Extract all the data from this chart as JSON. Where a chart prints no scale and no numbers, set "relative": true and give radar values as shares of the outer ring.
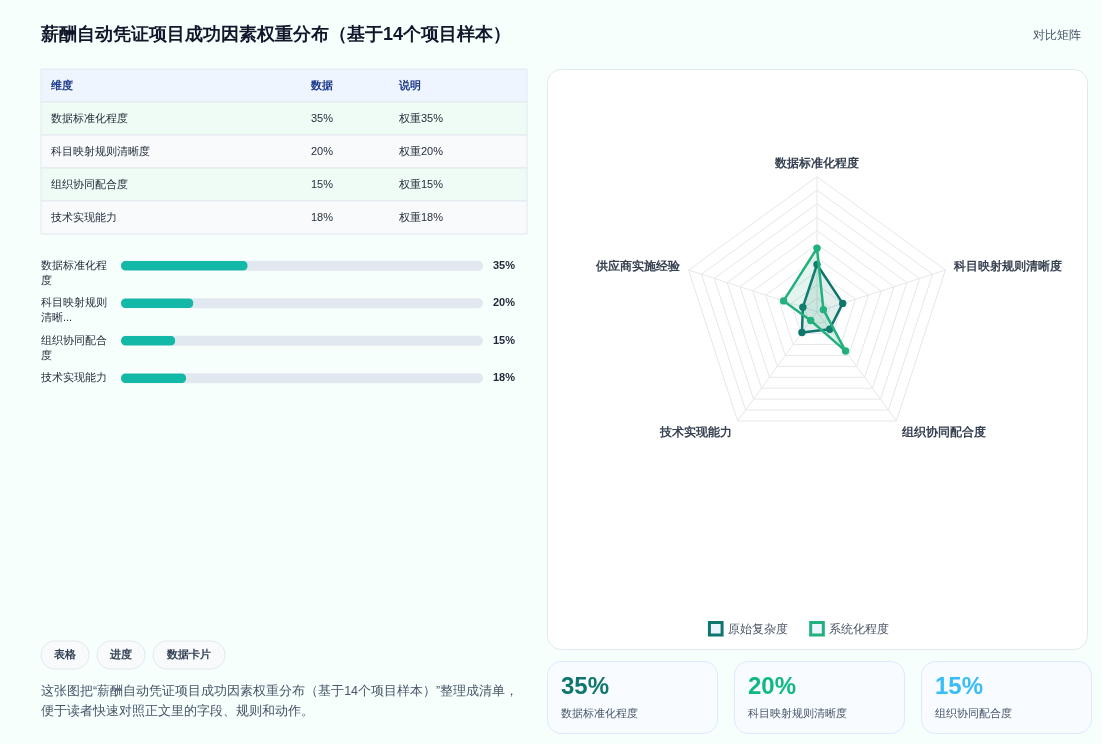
{
  "chart_data": [
    {
      "type": "other",
      "title": "薪酬自动凭证项目成功因素权重分布（基于14个项目样本）",
      "annotations": [
        "对比矩阵",
        "维度",
        "数据",
        "说明",
        "权重35%",
        "权重20%",
        "权重15%",
        "权重18%"
      ],
      "categories": [
        "数据标准化程度",
        "科目映射规则清晰度",
        "组织协同配合度",
        "技术实现能力"
      ],
      "value_labels": [
        "35%",
        "20%",
        "15%",
        "18%"
      ]
    },
    {
      "type": "bar",
      "orientation": "horizontal",
      "categories": [
        "数据标准化程度",
        "科目映射规则清晰...",
        "组织协同配合度",
        "技术实现能力"
      ],
      "values": [
        35,
        20,
        15,
        18
      ],
      "value_labels": [
        "35%",
        "20%",
        "15%",
        "18%"
      ],
      "color": "#14b8a6",
      "xlim": [
        0,
        100
      ]
    },
    {
      "type": "other",
      "annotations": [
        "表格",
        "进度",
        "数据卡片",
        "这张图把“薪酬自动凭证项目成功因素权重分布（基于14个项目样本）”整理成清单，便于读者快速对照正文里的字段、规则和动作。"
      ]
    },
    {
      "type": "radar",
      "relative": true,
      "grid": true,
      "legend": "bottom",
      "marker": "circle",
      "categories": [
        "数据标准化程度",
        "科目映射规则清晰度",
        "组织协同配合度",
        "技术实现能力",
        "供应商实施经验"
      ],
      "series": [
        {
          "name": "原始复杂度",
          "color": "#0f766e",
          "values": [
            0.35,
            0.2,
            0.16,
            0.19,
            0.11
          ]
        },
        {
          "name": "系统化程度",
          "color": "#22b07d",
          "values": [
            0.47,
            0.05,
            0.36,
            0.08,
            0.26
          ]
        }
      ]
    },
    {
      "type": "other",
      "categories": [
        "数据标准化程度",
        "科目映射规则清晰度",
        "组织协同配合度"
      ],
      "value_labels": [
        "35%",
        "20%",
        "15%"
      ],
      "colors": [
        "#0f766e",
        "#10b981",
        "#38bdf8"
      ]
    }
  ]
}
